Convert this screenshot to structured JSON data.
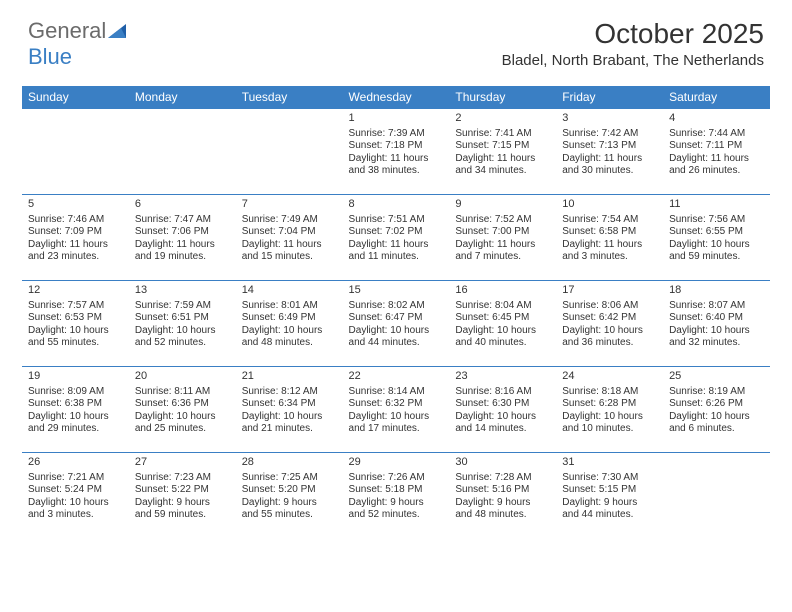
{
  "logo": {
    "text_general": "General",
    "text_blue": "Blue",
    "triangle_color": "#3a7fc4"
  },
  "title": "October 2025",
  "location": "Bladel, North Brabant, The Netherlands",
  "colors": {
    "header_bg": "#3a7fc4",
    "header_text": "#ffffff",
    "cell_border": "#3a7fc4",
    "text": "#333333",
    "background": "#ffffff"
  },
  "fonts": {
    "title_size": 28,
    "location_size": 15,
    "dayheader_size": 12,
    "daynum_size": 11,
    "body_size": 10
  },
  "day_headers": [
    "Sunday",
    "Monday",
    "Tuesday",
    "Wednesday",
    "Thursday",
    "Friday",
    "Saturday"
  ],
  "weeks": [
    [
      {
        "n": "",
        "sr": "",
        "ss": "",
        "d1": "",
        "d2": ""
      },
      {
        "n": "",
        "sr": "",
        "ss": "",
        "d1": "",
        "d2": ""
      },
      {
        "n": "",
        "sr": "",
        "ss": "",
        "d1": "",
        "d2": ""
      },
      {
        "n": "1",
        "sr": "Sunrise: 7:39 AM",
        "ss": "Sunset: 7:18 PM",
        "d1": "Daylight: 11 hours",
        "d2": "and 38 minutes."
      },
      {
        "n": "2",
        "sr": "Sunrise: 7:41 AM",
        "ss": "Sunset: 7:15 PM",
        "d1": "Daylight: 11 hours",
        "d2": "and 34 minutes."
      },
      {
        "n": "3",
        "sr": "Sunrise: 7:42 AM",
        "ss": "Sunset: 7:13 PM",
        "d1": "Daylight: 11 hours",
        "d2": "and 30 minutes."
      },
      {
        "n": "4",
        "sr": "Sunrise: 7:44 AM",
        "ss": "Sunset: 7:11 PM",
        "d1": "Daylight: 11 hours",
        "d2": "and 26 minutes."
      }
    ],
    [
      {
        "n": "5",
        "sr": "Sunrise: 7:46 AM",
        "ss": "Sunset: 7:09 PM",
        "d1": "Daylight: 11 hours",
        "d2": "and 23 minutes."
      },
      {
        "n": "6",
        "sr": "Sunrise: 7:47 AM",
        "ss": "Sunset: 7:06 PM",
        "d1": "Daylight: 11 hours",
        "d2": "and 19 minutes."
      },
      {
        "n": "7",
        "sr": "Sunrise: 7:49 AM",
        "ss": "Sunset: 7:04 PM",
        "d1": "Daylight: 11 hours",
        "d2": "and 15 minutes."
      },
      {
        "n": "8",
        "sr": "Sunrise: 7:51 AM",
        "ss": "Sunset: 7:02 PM",
        "d1": "Daylight: 11 hours",
        "d2": "and 11 minutes."
      },
      {
        "n": "9",
        "sr": "Sunrise: 7:52 AM",
        "ss": "Sunset: 7:00 PM",
        "d1": "Daylight: 11 hours",
        "d2": "and 7 minutes."
      },
      {
        "n": "10",
        "sr": "Sunrise: 7:54 AM",
        "ss": "Sunset: 6:58 PM",
        "d1": "Daylight: 11 hours",
        "d2": "and 3 minutes."
      },
      {
        "n": "11",
        "sr": "Sunrise: 7:56 AM",
        "ss": "Sunset: 6:55 PM",
        "d1": "Daylight: 10 hours",
        "d2": "and 59 minutes."
      }
    ],
    [
      {
        "n": "12",
        "sr": "Sunrise: 7:57 AM",
        "ss": "Sunset: 6:53 PM",
        "d1": "Daylight: 10 hours",
        "d2": "and 55 minutes."
      },
      {
        "n": "13",
        "sr": "Sunrise: 7:59 AM",
        "ss": "Sunset: 6:51 PM",
        "d1": "Daylight: 10 hours",
        "d2": "and 52 minutes."
      },
      {
        "n": "14",
        "sr": "Sunrise: 8:01 AM",
        "ss": "Sunset: 6:49 PM",
        "d1": "Daylight: 10 hours",
        "d2": "and 48 minutes."
      },
      {
        "n": "15",
        "sr": "Sunrise: 8:02 AM",
        "ss": "Sunset: 6:47 PM",
        "d1": "Daylight: 10 hours",
        "d2": "and 44 minutes."
      },
      {
        "n": "16",
        "sr": "Sunrise: 8:04 AM",
        "ss": "Sunset: 6:45 PM",
        "d1": "Daylight: 10 hours",
        "d2": "and 40 minutes."
      },
      {
        "n": "17",
        "sr": "Sunrise: 8:06 AM",
        "ss": "Sunset: 6:42 PM",
        "d1": "Daylight: 10 hours",
        "d2": "and 36 minutes."
      },
      {
        "n": "18",
        "sr": "Sunrise: 8:07 AM",
        "ss": "Sunset: 6:40 PM",
        "d1": "Daylight: 10 hours",
        "d2": "and 32 minutes."
      }
    ],
    [
      {
        "n": "19",
        "sr": "Sunrise: 8:09 AM",
        "ss": "Sunset: 6:38 PM",
        "d1": "Daylight: 10 hours",
        "d2": "and 29 minutes."
      },
      {
        "n": "20",
        "sr": "Sunrise: 8:11 AM",
        "ss": "Sunset: 6:36 PM",
        "d1": "Daylight: 10 hours",
        "d2": "and 25 minutes."
      },
      {
        "n": "21",
        "sr": "Sunrise: 8:12 AM",
        "ss": "Sunset: 6:34 PM",
        "d1": "Daylight: 10 hours",
        "d2": "and 21 minutes."
      },
      {
        "n": "22",
        "sr": "Sunrise: 8:14 AM",
        "ss": "Sunset: 6:32 PM",
        "d1": "Daylight: 10 hours",
        "d2": "and 17 minutes."
      },
      {
        "n": "23",
        "sr": "Sunrise: 8:16 AM",
        "ss": "Sunset: 6:30 PM",
        "d1": "Daylight: 10 hours",
        "d2": "and 14 minutes."
      },
      {
        "n": "24",
        "sr": "Sunrise: 8:18 AM",
        "ss": "Sunset: 6:28 PM",
        "d1": "Daylight: 10 hours",
        "d2": "and 10 minutes."
      },
      {
        "n": "25",
        "sr": "Sunrise: 8:19 AM",
        "ss": "Sunset: 6:26 PM",
        "d1": "Daylight: 10 hours",
        "d2": "and 6 minutes."
      }
    ],
    [
      {
        "n": "26",
        "sr": "Sunrise: 7:21 AM",
        "ss": "Sunset: 5:24 PM",
        "d1": "Daylight: 10 hours",
        "d2": "and 3 minutes."
      },
      {
        "n": "27",
        "sr": "Sunrise: 7:23 AM",
        "ss": "Sunset: 5:22 PM",
        "d1": "Daylight: 9 hours",
        "d2": "and 59 minutes."
      },
      {
        "n": "28",
        "sr": "Sunrise: 7:25 AM",
        "ss": "Sunset: 5:20 PM",
        "d1": "Daylight: 9 hours",
        "d2": "and 55 minutes."
      },
      {
        "n": "29",
        "sr": "Sunrise: 7:26 AM",
        "ss": "Sunset: 5:18 PM",
        "d1": "Daylight: 9 hours",
        "d2": "and 52 minutes."
      },
      {
        "n": "30",
        "sr": "Sunrise: 7:28 AM",
        "ss": "Sunset: 5:16 PM",
        "d1": "Daylight: 9 hours",
        "d2": "and 48 minutes."
      },
      {
        "n": "31",
        "sr": "Sunrise: 7:30 AM",
        "ss": "Sunset: 5:15 PM",
        "d1": "Daylight: 9 hours",
        "d2": "and 44 minutes."
      },
      {
        "n": "",
        "sr": "",
        "ss": "",
        "d1": "",
        "d2": ""
      }
    ]
  ]
}
